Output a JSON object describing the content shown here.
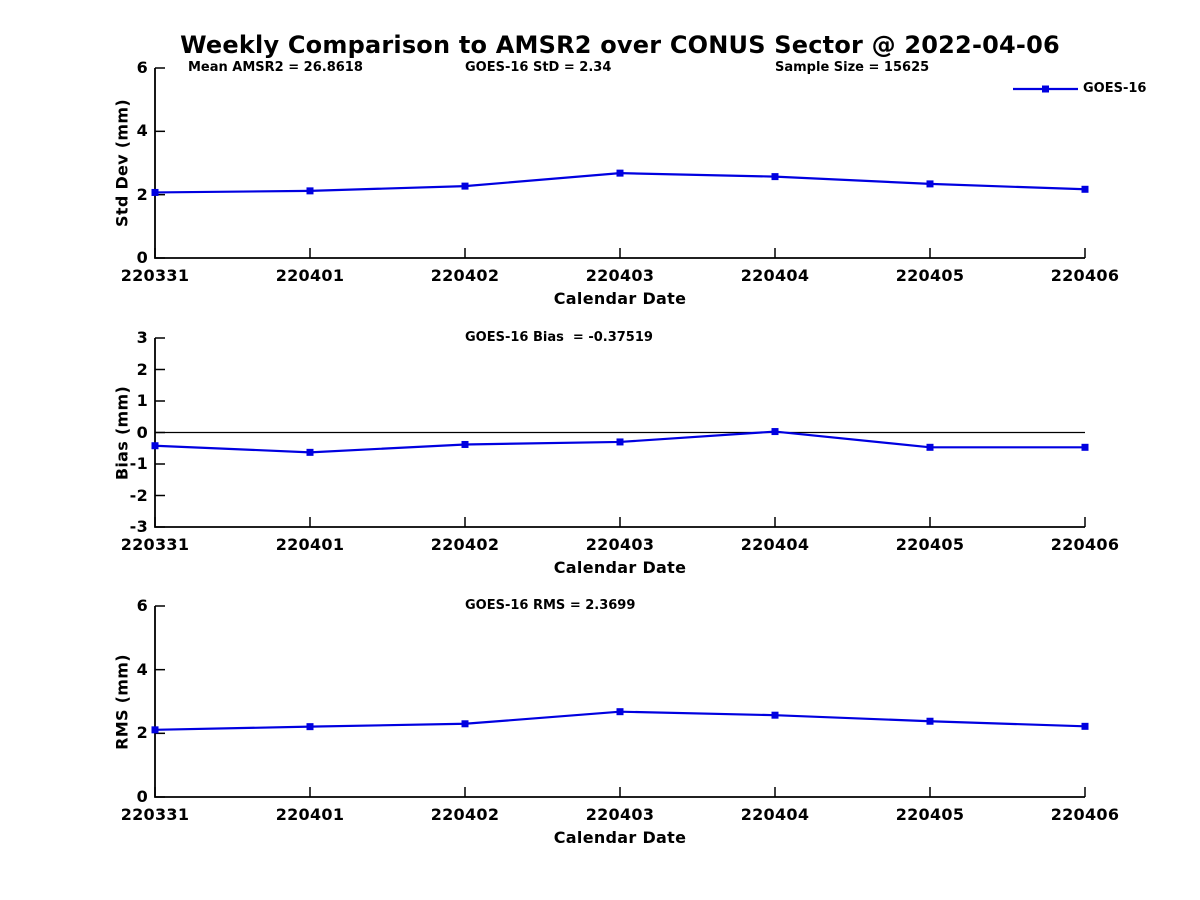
{
  "title": "Weekly Comparison to AMSR2 over CONUS Sector @ 2022-04-06",
  "legend": {
    "label": "GOES-16"
  },
  "colors": {
    "line": "#0000e0",
    "axis": "#000000",
    "text": "#000000",
    "background": "#ffffff"
  },
  "chart_data": [
    {
      "type": "line",
      "name": "std-dev",
      "annotations": [
        "Mean AMSR2 = 26.8618",
        "GOES-16 StD = 2.34",
        "Sample Size = 15625"
      ],
      "x": [
        "220331",
        "220401",
        "220402",
        "220403",
        "220404",
        "220405",
        "220406"
      ],
      "xlabel": "Calendar Date",
      "ylabel": "Std Dev (mm)",
      "ylim": [
        0,
        6
      ],
      "yticks": [
        0,
        2,
        4,
        6
      ],
      "grid": false,
      "legend_position": "top-right-outside",
      "series": [
        {
          "name": "GOES-16",
          "values": [
            2.07,
            2.12,
            2.27,
            2.68,
            2.57,
            2.34,
            2.17
          ]
        }
      ]
    },
    {
      "type": "line",
      "name": "bias",
      "annotations": [
        "GOES-16 Bias  = -0.37519"
      ],
      "x": [
        "220331",
        "220401",
        "220402",
        "220403",
        "220404",
        "220405",
        "220406"
      ],
      "xlabel": "Calendar Date",
      "ylabel": "Bias (mm)",
      "ylim": [
        -3,
        3
      ],
      "yticks": [
        -3,
        -2,
        -1,
        0,
        1,
        2,
        3
      ],
      "zero_line": true,
      "grid": false,
      "series": [
        {
          "name": "GOES-16",
          "values": [
            -0.42,
            -0.63,
            -0.38,
            -0.3,
            0.03,
            -0.47,
            -0.47
          ]
        }
      ]
    },
    {
      "type": "line",
      "name": "rms",
      "annotations": [
        "GOES-16 RMS = 2.3699"
      ],
      "x": [
        "220331",
        "220401",
        "220402",
        "220403",
        "220404",
        "220405",
        "220406"
      ],
      "xlabel": "Calendar Date",
      "ylabel": "RMS (mm)",
      "ylim": [
        0,
        6
      ],
      "yticks": [
        0,
        2,
        4,
        6
      ],
      "grid": false,
      "series": [
        {
          "name": "GOES-16",
          "values": [
            2.11,
            2.21,
            2.3,
            2.68,
            2.57,
            2.38,
            2.22
          ]
        }
      ]
    }
  ]
}
